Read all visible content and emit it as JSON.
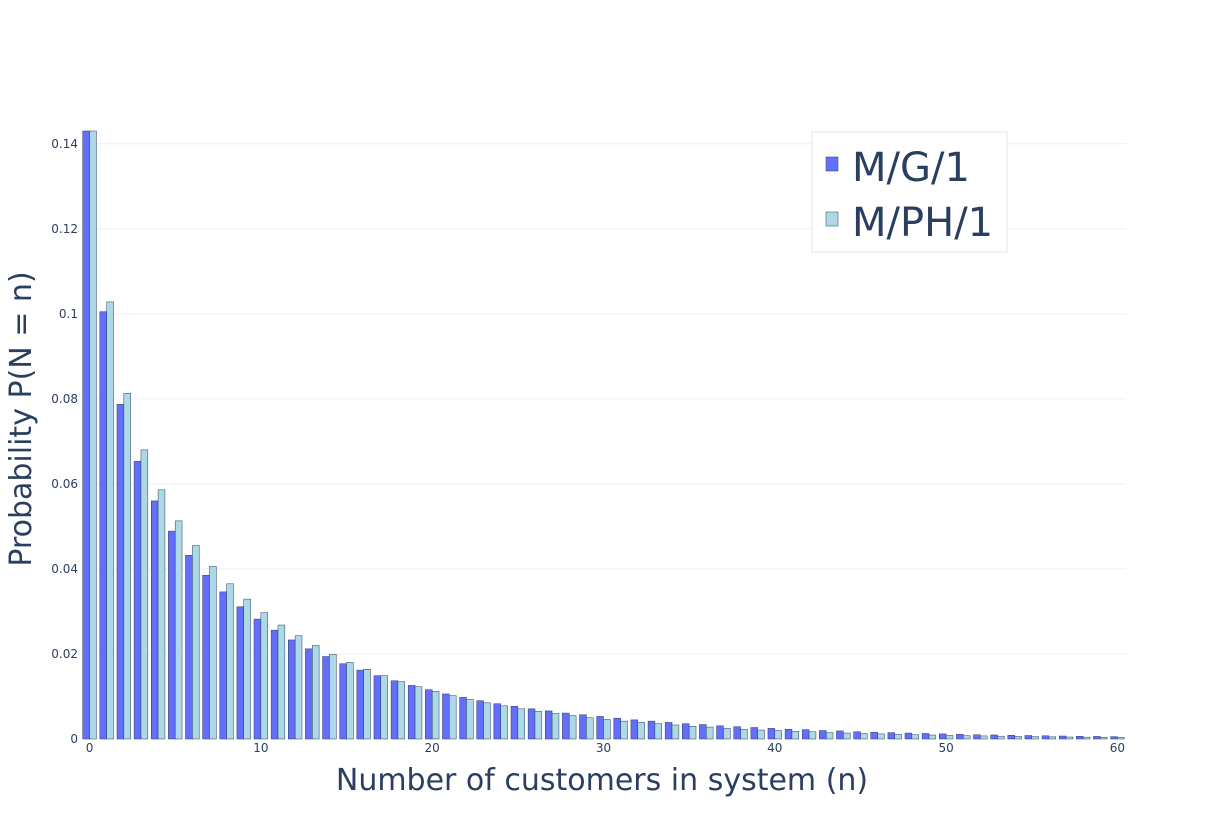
{
  "chart_data": {
    "type": "bar",
    "title": "",
    "xlabel": "Number of customers in system (n)",
    "ylabel": "Probability P(N = n)",
    "xlim": [
      -0.5,
      60.5
    ],
    "ylim": [
      0,
      0.143
    ],
    "x_ticks": [
      0,
      10,
      20,
      30,
      40,
      50,
      60
    ],
    "x_tick_labels": [
      "0",
      "10",
      "20",
      "30",
      "40",
      "50",
      "60"
    ],
    "y_ticks": [
      0,
      0.02,
      0.04,
      0.06,
      0.08,
      0.1,
      0.12,
      0.14
    ],
    "y_tick_labels": [
      "0",
      "0.02",
      "0.04",
      "0.06",
      "0.08",
      "0.1",
      "0.12",
      "0.14"
    ],
    "grid": true,
    "legend_position": "top-right",
    "categories": [
      0,
      1,
      2,
      3,
      4,
      5,
      6,
      7,
      8,
      9,
      10,
      11,
      12,
      13,
      14,
      15,
      16,
      17,
      18,
      19,
      20,
      21,
      22,
      23,
      24,
      25,
      26,
      27,
      28,
      29,
      30,
      31,
      32,
      33,
      34,
      35,
      36,
      37,
      38,
      39,
      40,
      41,
      42,
      43,
      44,
      45,
      46,
      47,
      48,
      49,
      50,
      51,
      52,
      53,
      54,
      55,
      56,
      57,
      58,
      59,
      60
    ],
    "series": [
      {
        "name": "M/G/1",
        "color": "#636efa",
        "values": [
          0.143,
          0.1005,
          0.0787,
          0.0653,
          0.056,
          0.0489,
          0.0432,
          0.0385,
          0.0346,
          0.0311,
          0.0282,
          0.0256,
          0.0233,
          0.0212,
          0.0194,
          0.0177,
          0.0162,
          0.0149,
          0.0137,
          0.0126,
          0.0116,
          0.0106,
          0.0098,
          0.009,
          0.0083,
          0.0077,
          0.0071,
          0.0066,
          0.0061,
          0.0057,
          0.0053,
          0.0049,
          0.0045,
          0.0042,
          0.0039,
          0.0036,
          0.0034,
          0.0031,
          0.0029,
          0.0027,
          0.0025,
          0.0023,
          0.0022,
          0.002,
          0.0019,
          0.0017,
          0.0016,
          0.0015,
          0.0014,
          0.0013,
          0.0012,
          0.0011,
          0.001,
          0.00095,
          0.00088,
          0.00082,
          0.00076,
          0.0007,
          0.00065,
          0.00061,
          0.00056
        ]
      },
      {
        "name": "M/PH/1",
        "color": "#add8e6",
        "values": [
          0.143,
          0.1028,
          0.0813,
          0.068,
          0.0586,
          0.0513,
          0.0455,
          0.0406,
          0.0365,
          0.0329,
          0.0297,
          0.0268,
          0.0243,
          0.022,
          0.0199,
          0.018,
          0.0164,
          0.0149,
          0.0135,
          0.0123,
          0.0112,
          0.0102,
          0.0093,
          0.0085,
          0.0078,
          0.0071,
          0.0065,
          0.006,
          0.0055,
          0.005,
          0.0046,
          0.0042,
          0.0039,
          0.0036,
          0.0033,
          0.003,
          0.0028,
          0.0025,
          0.0023,
          0.0021,
          0.002,
          0.0018,
          0.0017,
          0.0015,
          0.0014,
          0.0013,
          0.0012,
          0.0011,
          0.001,
          0.00093,
          0.00085,
          0.00078,
          0.00072,
          0.00066,
          0.00061,
          0.00056,
          0.00051,
          0.00047,
          0.00043,
          0.0004,
          0.00037
        ]
      }
    ]
  }
}
